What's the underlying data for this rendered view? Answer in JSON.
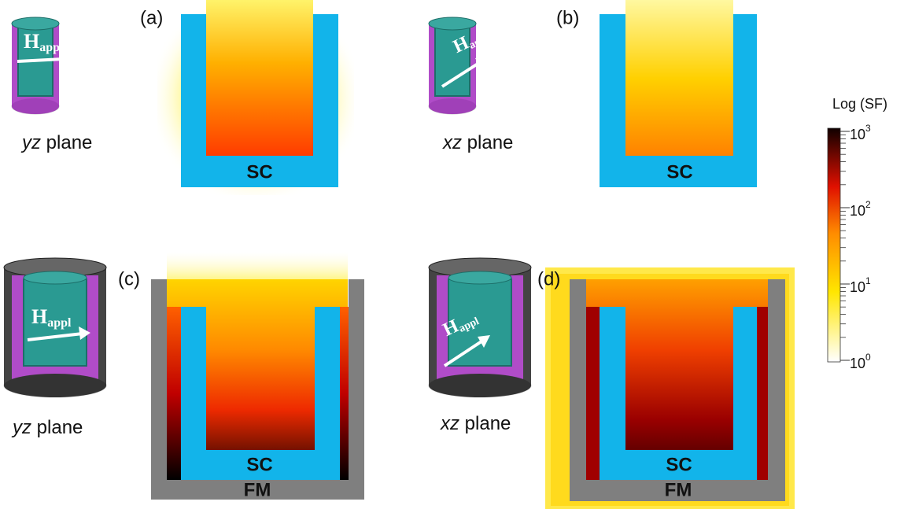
{
  "panels": [
    {
      "label": "(a)",
      "plane": {
        "axis": "yz",
        "word": "plane"
      },
      "field": {
        "symbol": "H",
        "subscript": "appl"
      },
      "materials": [
        "SC"
      ]
    },
    {
      "label": "(b)",
      "plane": {
        "axis": "xz",
        "word": "plane"
      },
      "field": {
        "symbol": "H",
        "subscript": "appl"
      },
      "materials": [
        "SC"
      ]
    },
    {
      "label": "(c)",
      "plane": {
        "axis": "yz",
        "word": "plane"
      },
      "field": {
        "symbol": "H",
        "subscript": "appl"
      },
      "materials": [
        "SC",
        "FM"
      ]
    },
    {
      "label": "(d)",
      "plane": {
        "axis": "xz",
        "word": "plane"
      },
      "field": {
        "symbol": "H",
        "subscript": "appl"
      },
      "materials": [
        "SC",
        "FM"
      ]
    }
  ],
  "colorbar": {
    "title": "Log (SF)",
    "ticks": [
      {
        "base": "10",
        "exponent": "3"
      },
      {
        "base": "10",
        "exponent": "2"
      },
      {
        "base": "10",
        "exponent": "1"
      },
      {
        "base": "10",
        "exponent": "0"
      }
    ]
  }
}
